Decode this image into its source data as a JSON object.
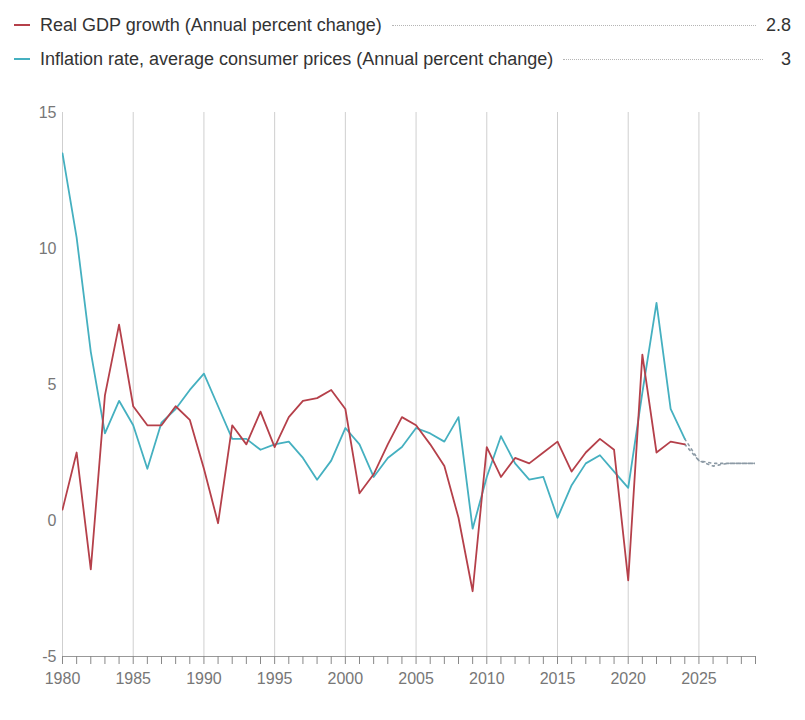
{
  "chart_data": {
    "type": "line",
    "x": [
      1980,
      1981,
      1982,
      1983,
      1984,
      1985,
      1986,
      1987,
      1988,
      1989,
      1990,
      1991,
      1992,
      1993,
      1994,
      1995,
      1996,
      1997,
      1998,
      1999,
      2000,
      2001,
      2002,
      2003,
      2004,
      2005,
      2006,
      2007,
      2008,
      2009,
      2010,
      2011,
      2012,
      2013,
      2014,
      2015,
      2016,
      2017,
      2018,
      2019,
      2020,
      2021,
      2022,
      2023,
      2024,
      2025,
      2026,
      2027,
      2028,
      2029
    ],
    "series": [
      {
        "name": "Real GDP growth (Annual percent change)",
        "color": "#b5404a",
        "line_style": "solid",
        "legend_value": 2.8,
        "projected_from": 2024,
        "values": [
          0.4,
          2.5,
          -1.8,
          4.6,
          7.2,
          4.2,
          3.5,
          3.5,
          4.2,
          3.7,
          1.9,
          -0.1,
          3.5,
          2.8,
          4.0,
          2.7,
          3.8,
          4.4,
          4.5,
          4.8,
          4.1,
          1.0,
          1.7,
          2.8,
          3.8,
          3.5,
          2.8,
          2.0,
          0.1,
          -2.6,
          2.7,
          1.6,
          2.3,
          2.1,
          2.5,
          2.9,
          1.8,
          2.5,
          3.0,
          2.6,
          -2.2,
          6.1,
          2.5,
          2.9,
          2.8,
          2.2,
          2.0,
          2.1,
          2.1,
          2.1
        ]
      },
      {
        "name": "Inflation rate, average consumer prices (Annual percent change)",
        "color": "#45b0c0",
        "line_style": "solid",
        "legend_value": 3,
        "projected_from": 2024,
        "values": [
          13.5,
          10.4,
          6.2,
          3.2,
          4.4,
          3.5,
          1.9,
          3.6,
          4.1,
          4.8,
          5.4,
          4.2,
          3.0,
          3.0,
          2.6,
          2.8,
          2.9,
          2.3,
          1.5,
          2.2,
          3.4,
          2.8,
          1.6,
          2.3,
          2.7,
          3.4,
          3.2,
          2.9,
          3.8,
          -0.3,
          1.6,
          3.1,
          2.1,
          1.5,
          1.6,
          0.1,
          1.3,
          2.1,
          2.4,
          1.8,
          1.2,
          4.7,
          8.0,
          4.1,
          3.0,
          2.2,
          2.1,
          2.1,
          2.1,
          2.1
        ]
      }
    ],
    "xlim": [
      1980,
      2029
    ],
    "xticks": [
      1980,
      1985,
      1990,
      1995,
      2000,
      2005,
      2010,
      2015,
      2020,
      2025
    ],
    "ylim": [
      -5,
      15
    ],
    "yticks": [
      -5,
      0,
      5,
      10,
      15
    ],
    "grid": "x",
    "legend": "top"
  }
}
